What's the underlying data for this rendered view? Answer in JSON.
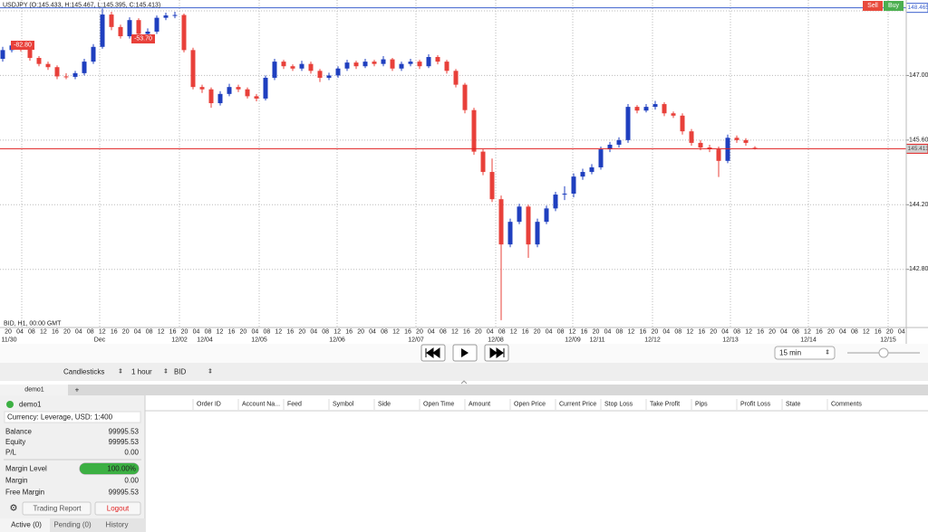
{
  "chart_data": {
    "type": "candlestick",
    "title": "USDJPY (O:145.433, H:145.467, L:145.395, C:145.413)",
    "subtitle": "BID, H1, 00:00 GMT",
    "up_color": "#1f3fbf",
    "down_color": "#e8403a",
    "ylim": [
      141.54,
      148.635
    ],
    "yticks": [
      {
        "value": 148.4,
        "label": "148.400"
      },
      {
        "value": 147,
        "label": "147.000"
      },
      {
        "value": 145.6,
        "label": "145.600"
      },
      {
        "value": 144.2,
        "label": "144.200"
      },
      {
        "value": 142.8,
        "label": "142.800"
      }
    ],
    "grid": true,
    "price_lines": [
      {
        "value": 148.465,
        "color": "#3a5fcd"
      },
      {
        "value": 145.413,
        "color": "#e02020"
      }
    ],
    "trade_markers": [
      "-82.80",
      "-53.70"
    ],
    "x_hour_labels": [
      "20",
      "04",
      "08",
      "12",
      "16",
      "20",
      "04",
      "08",
      "12",
      "16",
      "20",
      "04",
      "08",
      "12",
      "16",
      "20",
      "04",
      "08",
      "12",
      "16",
      "20",
      "04",
      "08",
      "12",
      "16",
      "20",
      "04",
      "08",
      "12",
      "16",
      "20",
      "04",
      "08",
      "12",
      "16",
      "20",
      "04",
      "08",
      "12",
      "16",
      "20",
      "04",
      "08",
      "12",
      "16",
      "20",
      "04",
      "08",
      "12",
      "16",
      "20",
      "04",
      "08",
      "12",
      "16",
      "20",
      "04",
      "08",
      "12",
      "16",
      "20",
      "04",
      "08",
      "12",
      "16",
      "20",
      "04",
      "08",
      "12",
      "16",
      "20",
      "04",
      "08",
      "12",
      "16",
      "20",
      "04"
    ],
    "x_date_labels": [
      "11/30",
      "Dec",
      "12/02",
      "12/04",
      "12/05",
      "12/06",
      "12/07",
      "12/08",
      "12/09",
      "12/11",
      "12/12",
      "12/13",
      "12/14",
      "12/15"
    ],
    "ohlc": [
      [
        147.36,
        147.62,
        147.3,
        147.55
      ],
      [
        147.55,
        147.72,
        147.5,
        147.65
      ],
      [
        147.65,
        147.7,
        147.52,
        147.58
      ],
      [
        147.58,
        147.62,
        147.32,
        147.38
      ],
      [
        147.38,
        147.42,
        147.2,
        147.25
      ],
      [
        147.25,
        147.3,
        147.12,
        147.18
      ],
      [
        147.18,
        147.22,
        146.92,
        146.98
      ],
      [
        146.98,
        147.05,
        146.92,
        146.97
      ],
      [
        146.97,
        147.1,
        146.92,
        147.05
      ],
      [
        147.05,
        147.36,
        147.0,
        147.3
      ],
      [
        147.3,
        147.68,
        147.25,
        147.62
      ],
      [
        147.62,
        148.45,
        147.58,
        148.32
      ],
      [
        148.32,
        148.38,
        147.98,
        148.05
      ],
      [
        148.05,
        148.1,
        147.8,
        147.85
      ],
      [
        147.85,
        148.26,
        147.8,
        148.2
      ],
      [
        148.2,
        148.24,
        147.84,
        147.9
      ],
      [
        147.9,
        148.02,
        147.86,
        147.95
      ],
      [
        147.95,
        148.3,
        147.9,
        148.25
      ],
      [
        148.25,
        148.36,
        148.2,
        148.3
      ],
      [
        148.3,
        148.38,
        148.24,
        148.31
      ],
      [
        148.31,
        148.34,
        147.5,
        147.55
      ],
      [
        147.55,
        147.6,
        146.7,
        146.75
      ],
      [
        146.75,
        146.8,
        146.62,
        146.7
      ],
      [
        146.7,
        146.74,
        146.3,
        146.4
      ],
      [
        146.4,
        146.66,
        146.35,
        146.6
      ],
      [
        146.6,
        146.82,
        146.55,
        146.75
      ],
      [
        146.75,
        146.8,
        146.64,
        146.7
      ],
      [
        146.7,
        146.74,
        146.5,
        146.55
      ],
      [
        146.55,
        146.6,
        146.44,
        146.5
      ],
      [
        146.5,
        147.0,
        146.46,
        146.95
      ],
      [
        146.95,
        147.36,
        146.9,
        147.3
      ],
      [
        147.3,
        147.34,
        147.14,
        147.2
      ],
      [
        147.2,
        147.24,
        147.1,
        147.15
      ],
      [
        147.15,
        147.32,
        147.1,
        147.25
      ],
      [
        147.25,
        147.3,
        147.04,
        147.1
      ],
      [
        147.1,
        147.14,
        146.86,
        146.95
      ],
      [
        146.95,
        147.06,
        146.9,
        147.0
      ],
      [
        147.0,
        147.2,
        146.95,
        147.15
      ],
      [
        147.15,
        147.34,
        147.1,
        147.28
      ],
      [
        147.28,
        147.32,
        147.14,
        147.2
      ],
      [
        147.2,
        147.36,
        147.16,
        147.3
      ],
      [
        147.3,
        147.34,
        147.2,
        147.25
      ],
      [
        147.25,
        147.42,
        147.2,
        147.35
      ],
      [
        147.35,
        147.38,
        147.1,
        147.15
      ],
      [
        147.15,
        147.3,
        147.1,
        147.25
      ],
      [
        147.25,
        147.36,
        147.2,
        147.3
      ],
      [
        147.3,
        147.34,
        147.14,
        147.2
      ],
      [
        147.2,
        147.46,
        147.16,
        147.4
      ],
      [
        147.4,
        147.44,
        147.24,
        147.3
      ],
      [
        147.3,
        147.34,
        147.04,
        147.1
      ],
      [
        147.1,
        147.14,
        146.74,
        146.8
      ],
      [
        146.8,
        146.84,
        146.18,
        146.25
      ],
      [
        146.25,
        146.3,
        145.28,
        145.35
      ],
      [
        145.35,
        145.4,
        144.84,
        144.91
      ],
      [
        144.91,
        145.2,
        144.26,
        144.32
      ],
      [
        144.32,
        144.4,
        141.7,
        143.34
      ],
      [
        143.34,
        143.9,
        143.28,
        143.83
      ],
      [
        143.83,
        144.22,
        143.78,
        144.16
      ],
      [
        144.16,
        144.2,
        143.05,
        143.34
      ],
      [
        143.34,
        143.9,
        143.28,
        143.83
      ],
      [
        143.83,
        144.18,
        143.78,
        144.12
      ],
      [
        144.12,
        144.48,
        144.06,
        144.42
      ],
      [
        144.42,
        144.6,
        144.3,
        144.44
      ],
      [
        144.44,
        144.88,
        144.36,
        144.81
      ],
      [
        144.81,
        144.98,
        144.74,
        144.91
      ],
      [
        144.91,
        145.08,
        144.86,
        145.01
      ],
      [
        145.01,
        145.46,
        144.96,
        145.4
      ],
      [
        145.4,
        145.56,
        145.34,
        145.5
      ],
      [
        145.5,
        145.66,
        145.44,
        145.6
      ],
      [
        145.6,
        146.38,
        145.54,
        146.32
      ],
      [
        146.32,
        146.36,
        146.18,
        146.24
      ],
      [
        146.24,
        146.38,
        146.2,
        146.32
      ],
      [
        146.32,
        146.45,
        146.26,
        146.38
      ],
      [
        146.38,
        146.42,
        146.12,
        146.18
      ],
      [
        146.18,
        146.22,
        146.08,
        146.13
      ],
      [
        146.13,
        146.18,
        145.72,
        145.79
      ],
      [
        145.79,
        145.84,
        145.48,
        145.54
      ],
      [
        145.54,
        145.6,
        145.38,
        145.44
      ],
      [
        145.44,
        145.5,
        145.34,
        145.4
      ],
      [
        145.4,
        145.46,
        144.8,
        145.15
      ],
      [
        145.15,
        145.72,
        145.1,
        145.65
      ],
      [
        145.65,
        145.7,
        145.54,
        145.6
      ],
      [
        145.6,
        145.64,
        145.48,
        145.54
      ],
      [
        145.433,
        145.467,
        145.395,
        145.413
      ]
    ]
  },
  "ui": {
    "sell": "Sell",
    "buy": "Buy",
    "interval_select": "15 min",
    "chart_type": "Candlesticks",
    "timeframe": "1 hour",
    "price_side": "BID",
    "tabs": [
      "demo1",
      "+"
    ],
    "account": {
      "name": "demo1",
      "currency": "Currency: Leverage, USD: 1:400",
      "rows": [
        [
          "Balance",
          "99995.53"
        ],
        [
          "Equity",
          "99995.53"
        ],
        [
          "P/L",
          "0.00"
        ]
      ],
      "margin_level": {
        "label": "Margin Level",
        "value": 100,
        "value_label": "100.00%"
      },
      "rows2": [
        [
          "Margin",
          "0.00"
        ],
        [
          "Free Margin",
          "99995.53"
        ]
      ],
      "buttons": [
        "Trading Report",
        "Logout"
      ],
      "order_tabs": [
        "Active (0)",
        "Pending (0)",
        "History"
      ]
    },
    "table_columns": [
      "Order ID",
      "Account Na...",
      "Feed",
      "Symbol",
      "Side",
      "Open Time",
      "Amount",
      "Open Price",
      "Current Price",
      "Stop Loss",
      "Take Profit",
      "Pips",
      "Profit Loss",
      "State",
      "Comments"
    ]
  }
}
